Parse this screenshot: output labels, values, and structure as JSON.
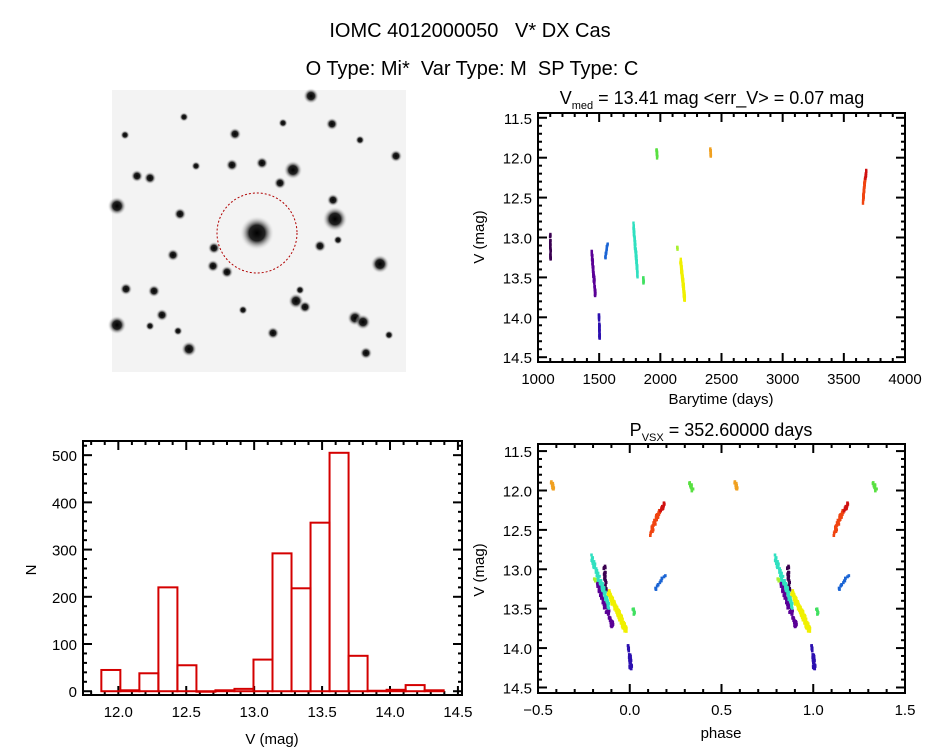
{
  "header": {
    "title": "IOMC 4012000050   V* DX Cas",
    "subtitle": "O Type: Mi*  Var Type: M  SP Type: C"
  },
  "colors": {
    "hist": "#d40000",
    "axis": "#000000",
    "circle": "#b00000"
  },
  "chart_data": [
    {
      "id": "sky-image",
      "type": "image",
      "description_marks": "finder chart with target circled"
    },
    {
      "id": "lightcurve",
      "type": "scatter",
      "title_main": "V",
      "title_sub": "med",
      "title_rest": " = 13.41 mag <err_V> = 0.07 mag",
      "xlabel": "Barytime (days)",
      "ylabel": "V (mag)",
      "xlim": [
        1000,
        4000
      ],
      "ylim": [
        14.56,
        11.44
      ],
      "xticks": [
        "1000",
        "1500",
        "2000",
        "2500",
        "3000",
        "3500",
        "4000"
      ],
      "yticks": [
        "11.5",
        "12.0",
        "12.5",
        "13.0",
        "13.5",
        "14.0",
        "14.5"
      ],
      "clusters": [
        {
          "t": [
            1098,
            1102
          ],
          "v": [
            12.97,
            13.28
          ],
          "color": "#3a0050",
          "n": 30
        },
        {
          "t": [
            1438,
            1468
          ],
          "v": [
            13.2,
            13.73
          ],
          "color": "#5a0096",
          "n": 80
        },
        {
          "t": [
            1498,
            1502
          ],
          "v": [
            13.95,
            14.27
          ],
          "color": "#2c10b0",
          "n": 30
        },
        {
          "t": [
            1548,
            1568
          ],
          "v": [
            13.25,
            13.07
          ],
          "color": "#1a64d4",
          "n": 15
        },
        {
          "t": [
            1778,
            1812
          ],
          "v": [
            12.83,
            13.47
          ],
          "color": "#30e0c0",
          "n": 90
        },
        {
          "t": [
            1858,
            1862
          ],
          "v": [
            13.5,
            13.58
          ],
          "color": "#40e060",
          "n": 8
        },
        {
          "t": [
            1968,
            1974
          ],
          "v": [
            11.9,
            12.01
          ],
          "color": "#58e040",
          "n": 12
        },
        {
          "t": [
            2138,
            2142
          ],
          "v": [
            13.12,
            13.16
          ],
          "color": "#a8f030",
          "n": 4
        },
        {
          "t": [
            2165,
            2198
          ],
          "v": [
            13.3,
            13.78
          ],
          "color": "#f0f000",
          "n": 200
        },
        {
          "t": [
            2408,
            2412
          ],
          "v": [
            11.89,
            12.01
          ],
          "color": "#f0a020",
          "n": 12
        },
        {
          "t": [
            3655,
            3672
          ],
          "v": [
            12.56,
            12.26
          ],
          "color": "#f04410",
          "n": 40
        },
        {
          "t": [
            3675,
            3682
          ],
          "v": [
            12.27,
            12.15
          ],
          "color": "#d01010",
          "n": 12
        }
      ]
    },
    {
      "id": "phase",
      "type": "scatter",
      "title_main": "P",
      "title_sub": "VSX",
      "title_rest": " = 352.60000 days",
      "period": 352.6,
      "epoch": 1500,
      "xlabel": "phase",
      "ylabel": "V (mag)",
      "xlim": [
        -0.5,
        1.5
      ],
      "ylim": [
        14.57,
        11.41
      ],
      "xticks": [
        "-0.5",
        "0.0",
        "0.5",
        "1.0",
        "1.5"
      ],
      "yticks": [
        "11.5",
        "12.0",
        "12.5",
        "13.0",
        "13.5",
        "14.0",
        "14.5"
      ]
    },
    {
      "id": "histogram",
      "type": "bar",
      "xlabel": "V (mag)",
      "ylabel": "N",
      "xlim": [
        11.74,
        14.53
      ],
      "ylim": [
        -8,
        530
      ],
      "bin_start": 11.875,
      "bin_width": 0.14,
      "values": [
        45,
        2,
        38,
        220,
        55,
        0,
        2,
        5,
        67,
        292,
        218,
        357,
        505,
        75,
        1,
        3,
        13,
        2
      ],
      "xticks": [
        "12.0",
        "12.5",
        "13.0",
        "13.5",
        "14.0",
        "14.5"
      ],
      "yticks": [
        "0",
        "100",
        "200",
        "300",
        "400",
        "500"
      ]
    }
  ]
}
